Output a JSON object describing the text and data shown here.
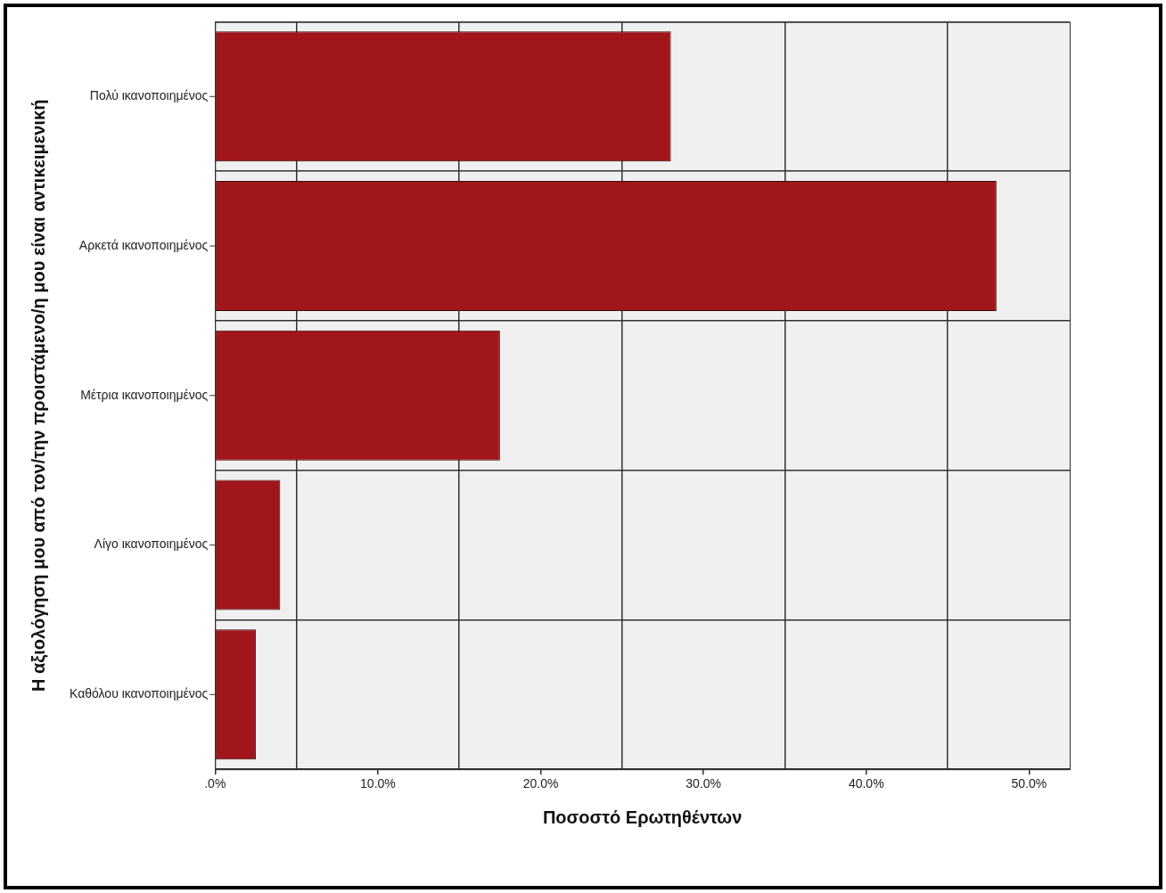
{
  "chart_data": {
    "type": "bar",
    "orientation": "horizontal",
    "xlabel": "Ποσοστό Ερωτηθέντων",
    "ylabel": "Η αξιολόγηση μου από τον/την προιστάμενο/η μου είναι αντικειμενική",
    "categories": [
      "Πολύ ικανοποιημένος",
      "Αρκετά ικανοποιημένος",
      "Μέτρια ικανοποιημένος",
      "Λίγο ικανοποιημένος",
      "Καθόλου ικανοποιημένος"
    ],
    "values": [
      28.0,
      48.0,
      17.5,
      4.0,
      2.5
    ],
    "color": "#a0161a",
    "xlim": [
      0,
      52.5
    ],
    "xticks": [
      {
        "value": 0,
        "label": ".0%"
      },
      {
        "value": 5,
        "label": null
      },
      {
        "value": 10,
        "label": "10.0%"
      },
      {
        "value": 15,
        "label": null
      },
      {
        "value": 20,
        "label": "20.0%"
      },
      {
        "value": 25,
        "label": null
      },
      {
        "value": 30,
        "label": "30.0%"
      },
      {
        "value": 35,
        "label": null
      },
      {
        "value": 40,
        "label": "40.0%"
      },
      {
        "value": 45,
        "label": null
      },
      {
        "value": 50,
        "label": "50.0%"
      }
    ],
    "grid": true,
    "legend": false
  }
}
